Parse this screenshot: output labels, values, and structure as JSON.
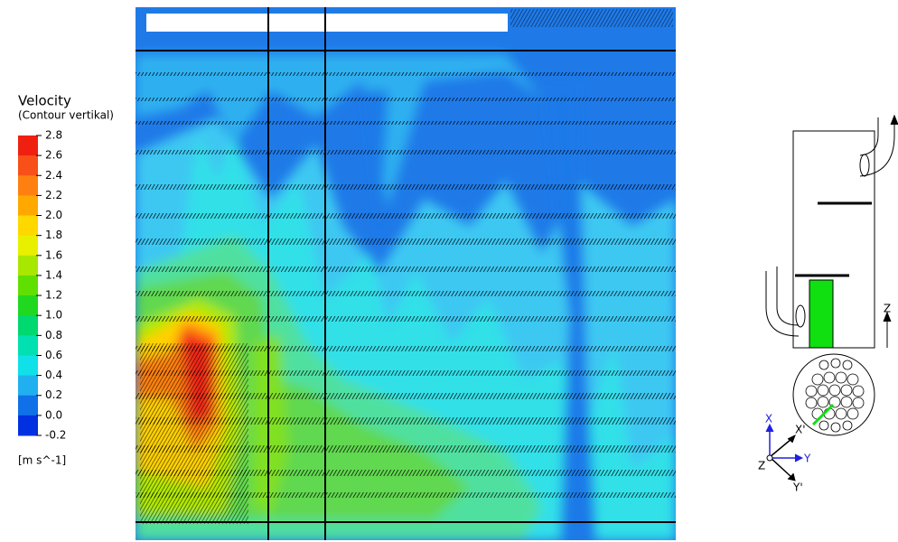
{
  "legend": {
    "title": "Velocity",
    "subtitle": "(Contour vertikal)",
    "ticks": [
      "2.8",
      "2.6",
      "2.4",
      "2.2",
      "2.0",
      "1.8",
      "1.6",
      "1.4",
      "1.2",
      "1.0",
      "0.8",
      "0.6",
      "0.4",
      "0.2",
      "0.0",
      "-0.2"
    ],
    "unit": "[m s^-1]"
  },
  "diagram": {
    "vessel_axis": "Z",
    "axes": {
      "x": "X",
      "y": "Y",
      "z": "Z",
      "x_prime": "X'",
      "y_prime": "Y'"
    }
  }
}
